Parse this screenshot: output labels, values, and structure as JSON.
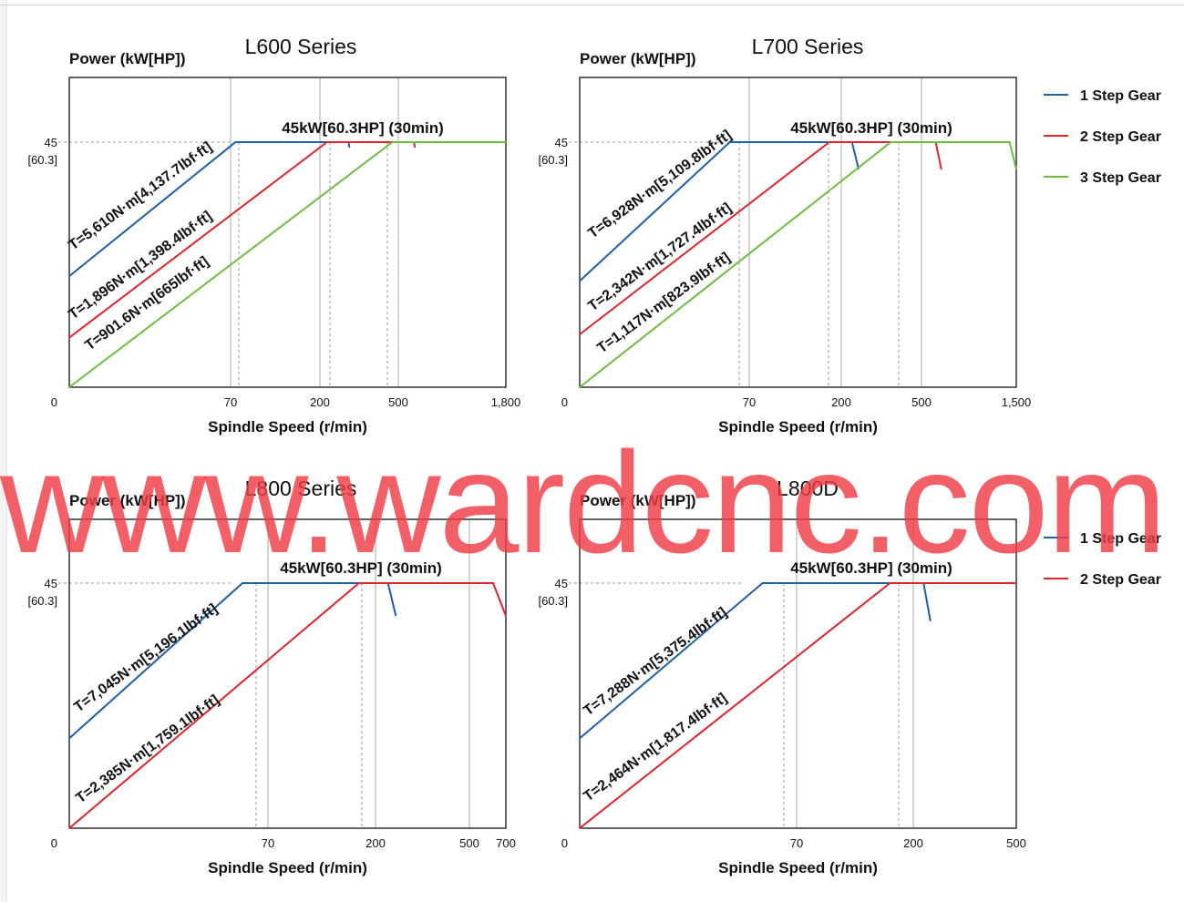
{
  "watermark": "www.wardcnc.com",
  "legend_colors": {
    "1 Step Gear": "#1f5ea8",
    "2 Step Gear": "#e0242b",
    "3 Step Gear": "#6bbf3e"
  },
  "chart_data": [
    {
      "type": "line",
      "title": "L600 Series",
      "ylabel": "Power (kW[HP])",
      "xlabel": "Spindle Speed (r/min)",
      "x_tick_labels": [
        "0",
        "70",
        "200",
        "500",
        "1,800"
      ],
      "y_tick_labels": [
        "0",
        "45",
        "[60.3]"
      ],
      "annotation": "45kW[60.3HP] (30min)",
      "legend": [
        "1 Step Gear",
        "2 Step Gear",
        "3 Step Gear"
      ],
      "series": [
        {
          "name": "1 Step Gear",
          "torque_label": "T=5,610N·m[4,137.7lbf·ft]",
          "x": [
            0,
            77,
            310,
            313
          ],
          "y": [
            20.4,
            45,
            45,
            44
          ]
        },
        {
          "name": "2 Step Gear",
          "torque_label": "T=1,896N·m[1,398.4lbf·ft]",
          "x": [
            0,
            227,
            690,
            700
          ],
          "y": [
            9.1,
            45,
            45,
            44
          ]
        },
        {
          "name": "3 Step Gear",
          "torque_label": "T=901.6N·m[665lbf·ft]",
          "x": [
            0,
            477,
            1800
          ],
          "y": [
            0,
            45,
            45
          ]
        }
      ]
    },
    {
      "type": "line",
      "title": "L700 Series",
      "ylabel": "Power (kW[HP])",
      "xlabel": "Spindle Speed (r/min)",
      "x_tick_labels": [
        "0",
        "70",
        "200",
        "500",
        "1,500"
      ],
      "y_tick_labels": [
        "0",
        "45",
        "[60.3]"
      ],
      "annotation": "45kW[60.3HP] (30min)",
      "legend": [
        "1 Step Gear",
        "2 Step Gear",
        "3 Step Gear"
      ],
      "series": [
        {
          "name": "1 Step Gear",
          "torque_label": "T=6,928N·m[5,109.8lbf·ft]",
          "x": [
            0,
            62,
            240,
            265
          ],
          "y": [
            19.5,
            45,
            45,
            40
          ]
        },
        {
          "name": "2 Step Gear",
          "torque_label": "T=2,342N·m[1,727.4lbf·ft]",
          "x": [
            0,
            183,
            650,
            710
          ],
          "y": [
            9.7,
            45,
            45,
            40
          ]
        },
        {
          "name": "3 Step Gear",
          "torque_label": "T=1,117N·m[823.9lbf·ft]",
          "x": [
            0,
            385,
            1430,
            1500
          ],
          "y": [
            0,
            45,
            45,
            40
          ]
        }
      ]
    },
    {
      "type": "line",
      "title": "L800 Series",
      "ylabel": "Power (kW[HP])",
      "xlabel": "Spindle Speed (r/min)",
      "x_tick_labels": [
        "0",
        "70",
        "200",
        "500",
        "700"
      ],
      "y_tick_labels": [
        "0",
        "45",
        "[60.3]"
      ],
      "annotation": "45kW[60.3HP] (30min)",
      "legend": [
        "1 Step Gear",
        "2 Step Gear"
      ],
      "series": [
        {
          "name": "1 Step Gear",
          "torque_label": "T=7,045N·m[5,196.1lbf·ft]",
          "x": [
            0,
            61,
            240,
            265
          ],
          "y": [
            16.5,
            45,
            45,
            39
          ]
        },
        {
          "name": "2 Step Gear",
          "torque_label": "T=2,385N·m[1,759.1lbf·ft]",
          "x": [
            0,
            180,
            630,
            700
          ],
          "y": [
            0,
            45,
            45,
            39
          ]
        }
      ]
    },
    {
      "type": "line",
      "title": "L800D",
      "ylabel": "Power (kW[HP])",
      "xlabel": "Spindle Speed (r/min)",
      "x_tick_labels": [
        "0",
        "70",
        "200",
        "500"
      ],
      "y_tick_labels": [
        "0",
        "45",
        "[60.3]"
      ],
      "annotation": "45kW[60.3HP] (30min)",
      "legend": [
        "1 Step Gear",
        "2 Step Gear"
      ],
      "series": [
        {
          "name": "1 Step Gear",
          "torque_label": "T=7,288N·m[5,375.4lbf·ft]",
          "x": [
            0,
            59,
            230,
            250
          ],
          "y": [
            16.5,
            45,
            45,
            38
          ]
        },
        {
          "name": "2 Step Gear",
          "torque_label": "T=2,464N·m[1,817.4lbf·ft]",
          "x": [
            0,
            174,
            500
          ],
          "y": [
            0,
            45,
            45
          ]
        }
      ]
    }
  ]
}
